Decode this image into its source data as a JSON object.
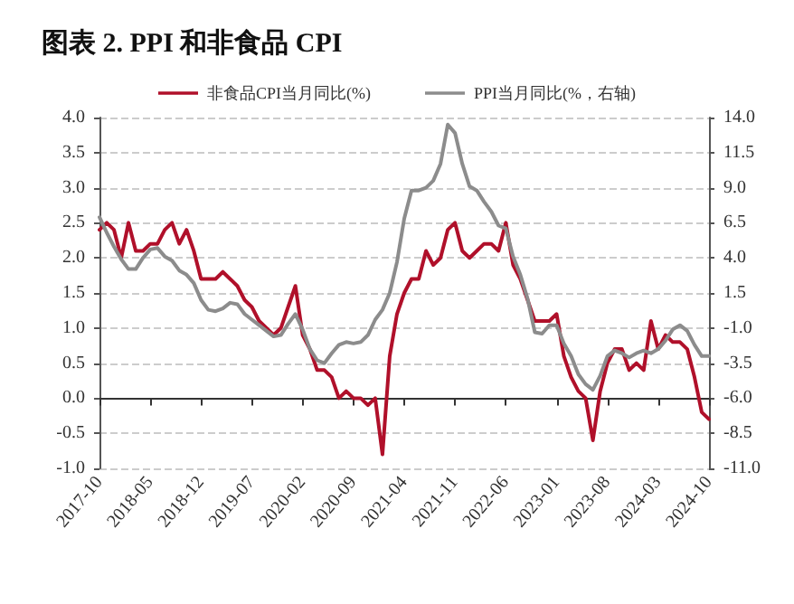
{
  "chart_data": {
    "type": "line",
    "title": "图表 2. PPI 和非食品 CPI",
    "categories": [
      "2017-10",
      null,
      null,
      null,
      null,
      null,
      null,
      "2018-05",
      null,
      null,
      null,
      null,
      null,
      null,
      "2018-12",
      null,
      null,
      null,
      null,
      null,
      null,
      "2019-07",
      null,
      null,
      null,
      null,
      null,
      null,
      "2020-02",
      null,
      null,
      null,
      null,
      null,
      null,
      "2020-09",
      null,
      null,
      null,
      null,
      null,
      null,
      "2021-04",
      null,
      null,
      null,
      null,
      null,
      null,
      "2021-11",
      null,
      null,
      null,
      null,
      null,
      null,
      "2022-06",
      null,
      null,
      null,
      null,
      null,
      null,
      "2023-01",
      null,
      null,
      null,
      null,
      null,
      null,
      "2023-08",
      null,
      null,
      null,
      null,
      null,
      null,
      "2024-03",
      null,
      null,
      null,
      null,
      null,
      null,
      "2024-10"
    ],
    "series": [
      {
        "name": "非食品CPI当月同比(%)",
        "color": "#b0102a",
        "values": [
          2.4,
          2.5,
          2.4,
          2.0,
          2.5,
          2.1,
          2.1,
          2.2,
          2.2,
          2.4,
          2.5,
          2.2,
          2.4,
          2.1,
          1.7,
          1.7,
          1.7,
          1.8,
          1.7,
          1.6,
          1.4,
          1.3,
          1.1,
          1.0,
          0.9,
          1.0,
          1.3,
          1.6,
          0.9,
          0.7,
          0.4,
          0.4,
          0.3,
          0.0,
          0.1,
          0.0,
          0.0,
          -0.1,
          0.0,
          -0.8,
          0.6,
          1.2,
          1.5,
          1.7,
          1.7,
          2.1,
          1.9,
          2.0,
          2.4,
          2.5,
          2.1,
          2.0,
          2.1,
          2.2,
          2.2,
          2.1,
          2.5,
          1.9,
          1.7,
          1.4,
          1.1,
          1.1,
          1.1,
          1.2,
          0.6,
          0.3,
          0.1,
          0.0,
          -0.6,
          0.1,
          0.5,
          0.7,
          0.7,
          0.4,
          0.5,
          0.4,
          1.1,
          0.7,
          0.9,
          0.8,
          0.8,
          0.7,
          0.3,
          -0.2,
          -0.3
        ]
      },
      {
        "name": "PPI当月同比(%，右轴)",
        "color": "#8c8c8c",
        "axis": "y2",
        "values": [
          6.9,
          5.8,
          4.8,
          3.9,
          3.2,
          3.2,
          4.0,
          4.6,
          4.7,
          4.1,
          3.8,
          3.1,
          2.8,
          2.2,
          1.0,
          0.3,
          0.2,
          0.4,
          0.8,
          0.7,
          0.0,
          -0.4,
          -0.8,
          -1.2,
          -1.6,
          -1.5,
          -0.7,
          0.0,
          -1.1,
          -2.5,
          -3.3,
          -3.5,
          -2.8,
          -2.2,
          -2.0,
          -2.1,
          -2.0,
          -1.5,
          -0.4,
          0.3,
          1.5,
          3.7,
          6.8,
          8.8,
          8.8,
          9.0,
          9.5,
          10.7,
          13.5,
          12.9,
          10.7,
          9.1,
          8.8,
          8.0,
          7.3,
          6.3,
          6.1,
          4.1,
          2.8,
          1.1,
          -1.3,
          -1.4,
          -0.8,
          -0.8,
          -2.1,
          -3.0,
          -4.3,
          -5.0,
          -5.4,
          -4.4,
          -3.0,
          -2.6,
          -2.8,
          -3.1,
          -2.8,
          -2.6,
          -2.8,
          -2.5,
          -1.9,
          -1.1,
          -0.8,
          -1.2,
          -2.2,
          -3.0,
          -3.0
        ]
      }
    ],
    "ylim": [
      -1,
      4
    ],
    "yticks": [
      {
        "value": -1,
        "label": "-1.0"
      },
      {
        "value": -0.5,
        "label": "-0.5"
      },
      {
        "value": 0,
        "label": "0.0"
      },
      {
        "value": 0.5,
        "label": "0.5"
      },
      {
        "value": 1,
        "label": "1.0"
      },
      {
        "value": 1.5,
        "label": "1.5"
      },
      {
        "value": 2,
        "label": "2.0"
      },
      {
        "value": 2.5,
        "label": "2.5"
      },
      {
        "value": 3,
        "label": "3.0"
      },
      {
        "value": 3.5,
        "label": "3.5"
      },
      {
        "value": 4,
        "label": "4.0"
      }
    ],
    "y2lim": [
      -11,
      14
    ],
    "y2ticks": [
      {
        "value": -11,
        "label": "-11.0"
      },
      {
        "value": -8.5,
        "label": "-8.5"
      },
      {
        "value": -6,
        "label": "-6.0"
      },
      {
        "value": -3.5,
        "label": "-3.5"
      },
      {
        "value": -1,
        "label": "-1.0"
      },
      {
        "value": 1.5,
        "label": "1.5"
      },
      {
        "value": 4,
        "label": "4.0"
      },
      {
        "value": 6.5,
        "label": "6.5"
      },
      {
        "value": 9,
        "label": "9.0"
      },
      {
        "value": 11.5,
        "label": "11.5"
      },
      {
        "value": 14,
        "label": "14.0"
      }
    ],
    "grid": "y",
    "legend": "top",
    "marker": "none",
    "line_style": "solid"
  }
}
